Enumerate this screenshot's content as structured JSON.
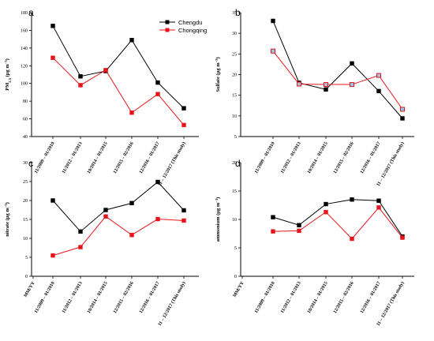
{
  "legend": [
    {
      "name": "Chengdu",
      "line": "#000000",
      "marker": "#000000"
    },
    {
      "name": "Chongqing",
      "line": "#e8141c",
      "marker": "#e8141c"
    }
  ],
  "chart_data": [
    {
      "panel": "a",
      "type": "line",
      "ylabel_parts": [
        "PM",
        "2.5",
        " (μg m",
        "−3",
        ")"
      ],
      "ylim": [
        40,
        180
      ],
      "yticks": [
        40,
        60,
        80,
        100,
        120,
        140,
        160,
        180
      ],
      "categories": [
        "11/2009 – 01/2010",
        "11/2012 – 01/2013",
        "10/2014 – 01/2015",
        "12/2015 – 02/2016",
        "12/2016 – 01/2017",
        "11 – 12/2017 (This study)"
      ],
      "series": [
        {
          "name": "Chengdu",
          "values": [
            165,
            108,
            114,
            149,
            101,
            72
          ]
        },
        {
          "name": "Chongqing",
          "values": [
            129,
            98,
            115,
            67,
            88,
            53
          ]
        }
      ]
    },
    {
      "panel": "b",
      "type": "line",
      "ylabel_parts": [
        "Sulfate (μg m",
        "−3",
        ")"
      ],
      "ylim": [
        5,
        35
      ],
      "yticks": [
        5,
        10,
        15,
        20,
        25,
        30,
        35
      ],
      "categories": [
        "11/2009 – 01/2010",
        "11/2012 – 01/2013",
        "10/2014 – 01/2015",
        "12/2015 – 02/2016",
        "12/2016 – 01/2017",
        "11 – 12/2017 (This study)"
      ],
      "series": [
        {
          "name": "Chengdu",
          "values": [
            33,
            18,
            16.4,
            22.7,
            16,
            9.4
          ]
        },
        {
          "name": "Chongqing",
          "values": [
            25.7,
            17.7,
            17.6,
            17.6,
            19.8,
            11.6
          ]
        }
      ]
    },
    {
      "panel": "c",
      "type": "line",
      "ylabel_parts": [
        "nitrate (μg m",
        "−3",
        ")"
      ],
      "ylim": [
        0,
        30
      ],
      "yticks": [
        0,
        5,
        10,
        15,
        20,
        25,
        30
      ],
      "categories": [
        "MM/YY",
        "11/2009 – 01/2010",
        "11/2012 – 01/2013",
        "10/2014 – 01/2015",
        "12/2015 – 02/2016",
        "12/2016 – 01/2017",
        "11 – 12/2017 (This study)"
      ],
      "series": [
        {
          "name": "Chengdu",
          "values": [
            null,
            20,
            11.8,
            17.5,
            19.3,
            24.9,
            17.4
          ]
        },
        {
          "name": "Chongqing",
          "values": [
            null,
            5.5,
            7.7,
            15.8,
            10.9,
            15.1,
            14.7
          ]
        }
      ]
    },
    {
      "panel": "d",
      "type": "line",
      "ylabel_parts": [
        "ammonium (μg m",
        "−3",
        ")"
      ],
      "ylim": [
        0,
        20
      ],
      "yticks": [
        0,
        5,
        10,
        15,
        20
      ],
      "categories": [
        "MM/YY",
        "11/2009 – 01/2010",
        "11/2012 – 01/2013",
        "10/2014 – 01/2015",
        "12/2015 – 02/2016",
        "12/2016 – 01/2017",
        "11 – 12/2017 (This study)"
      ],
      "series": [
        {
          "name": "Chengdu",
          "values": [
            null,
            10.4,
            9,
            12.7,
            13.5,
            13.3,
            7
          ]
        },
        {
          "name": "Chongqing",
          "values": [
            null,
            7.9,
            8,
            11.3,
            6.6,
            12.1,
            6.8
          ]
        }
      ]
    }
  ]
}
